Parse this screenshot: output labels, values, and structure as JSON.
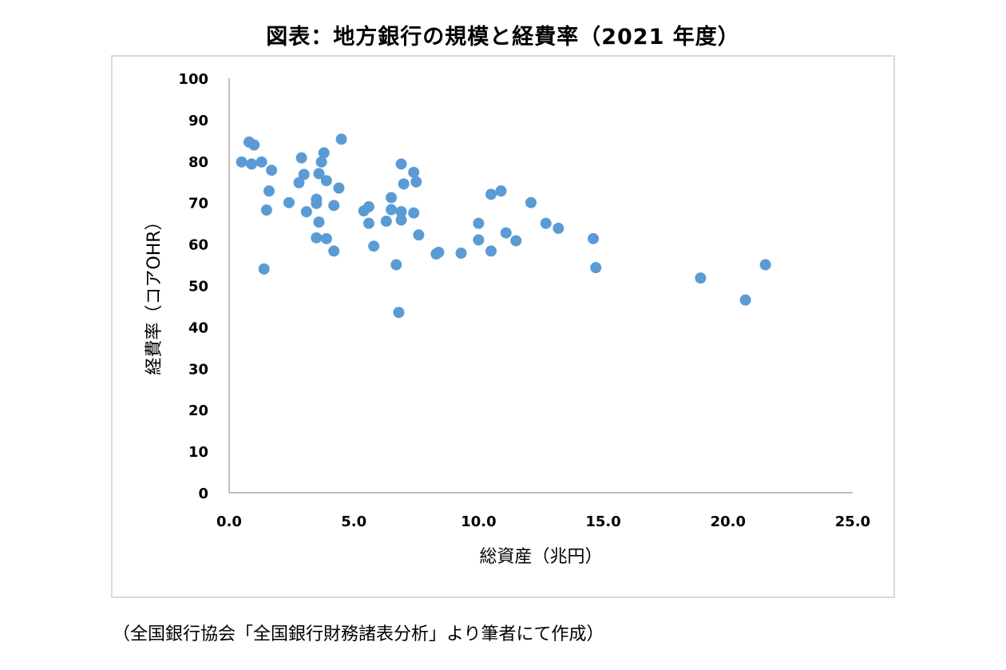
{
  "title": "図表：地方銀行の規模と経費率（2021 年度）",
  "source_note": "（全国銀行協会「全国銀行財務諸表分析」より筆者にて作成）",
  "chart_data": {
    "type": "scatter",
    "title": "図表：地方銀行の規模と経費率（2021 年度）",
    "xlabel": "総資産（兆円）",
    "ylabel": "経費率（コアOHR）",
    "xlim": [
      0,
      25
    ],
    "ylim": [
      0,
      100
    ],
    "x_ticks": [
      "0.0",
      "5.0",
      "10.0",
      "15.0",
      "20.0",
      "25.0"
    ],
    "y_ticks": [
      "0",
      "10",
      "20",
      "30",
      "40",
      "50",
      "60",
      "70",
      "80",
      "90",
      "100"
    ],
    "grid": false,
    "legend": false,
    "marker_color": "#5b9bd5",
    "points": [
      {
        "x": 0.5,
        "y": 79.8
      },
      {
        "x": 0.8,
        "y": 84.6
      },
      {
        "x": 0.9,
        "y": 79.3
      },
      {
        "x": 1.0,
        "y": 83.9
      },
      {
        "x": 1.3,
        "y": 79.8
      },
      {
        "x": 1.4,
        "y": 54.0
      },
      {
        "x": 1.5,
        "y": 68.2
      },
      {
        "x": 1.6,
        "y": 72.8
      },
      {
        "x": 1.7,
        "y": 77.8
      },
      {
        "x": 2.4,
        "y": 70.0
      },
      {
        "x": 2.8,
        "y": 74.8
      },
      {
        "x": 2.9,
        "y": 80.8
      },
      {
        "x": 3.0,
        "y": 76.8
      },
      {
        "x": 3.1,
        "y": 67.8
      },
      {
        "x": 3.5,
        "y": 70.8
      },
      {
        "x": 3.5,
        "y": 69.8
      },
      {
        "x": 3.5,
        "y": 61.5
      },
      {
        "x": 3.6,
        "y": 77.0
      },
      {
        "x": 3.6,
        "y": 65.3
      },
      {
        "x": 3.7,
        "y": 79.8
      },
      {
        "x": 3.8,
        "y": 82.0
      },
      {
        "x": 3.9,
        "y": 75.3
      },
      {
        "x": 3.9,
        "y": 61.3
      },
      {
        "x": 4.2,
        "y": 69.3
      },
      {
        "x": 4.2,
        "y": 58.3
      },
      {
        "x": 4.4,
        "y": 73.5
      },
      {
        "x": 4.5,
        "y": 85.3
      },
      {
        "x": 5.4,
        "y": 68.0
      },
      {
        "x": 5.6,
        "y": 69.0
      },
      {
        "x": 5.6,
        "y": 65.0
      },
      {
        "x": 5.8,
        "y": 59.5
      },
      {
        "x": 6.3,
        "y": 65.5
      },
      {
        "x": 6.5,
        "y": 71.2
      },
      {
        "x": 6.5,
        "y": 68.3
      },
      {
        "x": 6.7,
        "y": 55.0
      },
      {
        "x": 6.8,
        "y": 43.5
      },
      {
        "x": 6.9,
        "y": 67.8
      },
      {
        "x": 6.9,
        "y": 65.8
      },
      {
        "x": 6.9,
        "y": 79.3
      },
      {
        "x": 7.0,
        "y": 74.5
      },
      {
        "x": 7.4,
        "y": 77.3
      },
      {
        "x": 7.4,
        "y": 67.5
      },
      {
        "x": 7.5,
        "y": 75.0
      },
      {
        "x": 7.6,
        "y": 62.2
      },
      {
        "x": 8.3,
        "y": 57.6
      },
      {
        "x": 8.4,
        "y": 58.0
      },
      {
        "x": 9.3,
        "y": 57.8
      },
      {
        "x": 10.0,
        "y": 65.0
      },
      {
        "x": 10.0,
        "y": 61.0
      },
      {
        "x": 10.5,
        "y": 72.0
      },
      {
        "x": 10.5,
        "y": 58.3
      },
      {
        "x": 10.9,
        "y": 72.8
      },
      {
        "x": 11.1,
        "y": 62.7
      },
      {
        "x": 11.5,
        "y": 60.8
      },
      {
        "x": 12.1,
        "y": 70.0
      },
      {
        "x": 12.7,
        "y": 65.0
      },
      {
        "x": 13.2,
        "y": 63.8
      },
      {
        "x": 14.6,
        "y": 61.3
      },
      {
        "x": 14.7,
        "y": 54.3
      },
      {
        "x": 18.9,
        "y": 51.8
      },
      {
        "x": 20.7,
        "y": 46.5
      },
      {
        "x": 21.5,
        "y": 55.0
      }
    ]
  }
}
